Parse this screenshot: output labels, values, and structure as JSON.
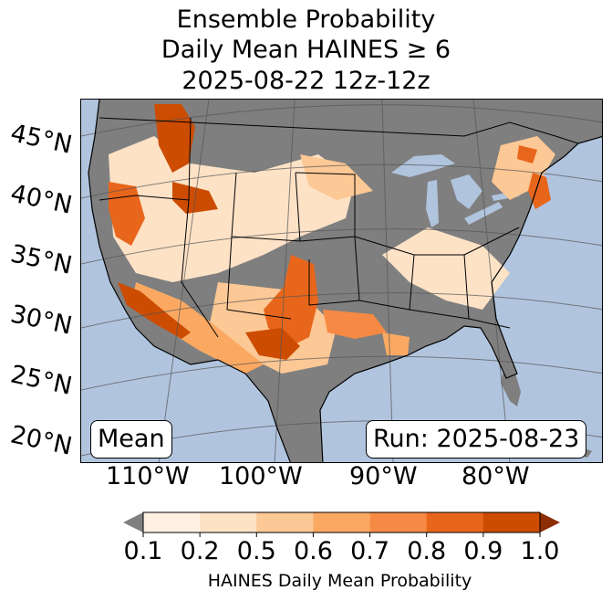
{
  "title": {
    "line1": "Ensemble Probability",
    "line2": "Daily Mean HAINES ≥ 6",
    "line3": "2025-08-22 12z-12z"
  },
  "map": {
    "lat_labels": [
      "45°N",
      "40°N",
      "35°N",
      "30°N",
      "25°N",
      "20°N"
    ],
    "lon_labels": [
      "110°W",
      "100°W",
      "90°W",
      "80°W"
    ],
    "stat_box": "Mean",
    "run_box": "Run: 2025-08-23",
    "colors": {
      "ocean": "#b0c4de",
      "no_data_land": "#7f7f7f",
      "lakes": "#b0c4de"
    }
  },
  "colorbar": {
    "ticks": [
      "0.1",
      "0.2",
      "0.5",
      "0.6",
      "0.7",
      "0.8",
      "0.9",
      "1.0"
    ],
    "colors": [
      "#fff0e3",
      "#fde2c6",
      "#fcc895",
      "#fba962",
      "#f68a44",
      "#e8661b",
      "#cc4c02",
      "#8c2d04"
    ],
    "under_color": "#7f7f7f",
    "label": "HAINES Daily Mean Probability"
  }
}
